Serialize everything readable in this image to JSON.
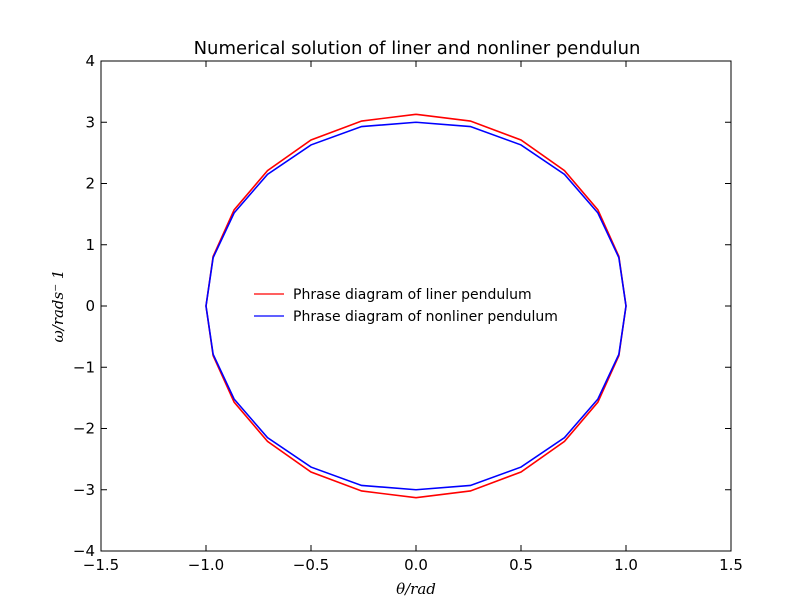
{
  "chart_data": {
    "type": "line",
    "title": "Numerical solution of liner and nonliner pendulun",
    "xlabel": "θ/rad",
    "ylabel": "ω/rads⁻ 1",
    "xlim": [
      -1.5,
      1.5
    ],
    "ylim": [
      -4,
      4
    ],
    "xticks": [
      -1.5,
      -1.0,
      -0.5,
      0.0,
      0.5,
      1.0,
      1.5
    ],
    "xtick_labels": [
      "−1.5",
      "−1.0",
      "−0.5",
      "0.0",
      "0.5",
      "1.0",
      "1.5"
    ],
    "yticks": [
      -4,
      -3,
      -2,
      -1,
      0,
      1,
      2,
      3,
      4
    ],
    "ytick_labels": [
      "−4",
      "−3",
      "−2",
      "−1",
      "0",
      "1",
      "2",
      "3",
      "4"
    ],
    "grid": false,
    "legend_position": "center",
    "series": [
      {
        "name": "Phrase diagram of liner pendulum",
        "color": "#ff0000",
        "x": [
          0.0,
          0.259,
          0.5,
          0.707,
          0.866,
          0.966,
          1.0,
          0.966,
          0.866,
          0.707,
          0.5,
          0.259,
          0.0,
          -0.259,
          -0.5,
          -0.707,
          -0.866,
          -0.966,
          -1.0,
          -0.966,
          -0.866,
          -0.707,
          -0.5,
          -0.259,
          0.0
        ],
        "y": [
          3.13,
          3.02,
          2.71,
          2.21,
          1.57,
          0.81,
          0.0,
          -0.81,
          -1.57,
          -2.21,
          -2.71,
          -3.02,
          -3.13,
          -3.02,
          -2.71,
          -2.21,
          -1.57,
          -0.81,
          0.0,
          0.81,
          1.57,
          2.21,
          2.71,
          3.02,
          3.13
        ]
      },
      {
        "name": "Phrase diagram of nonliner pendulum",
        "color": "#0000ff",
        "x": [
          0.0,
          0.259,
          0.5,
          0.707,
          0.866,
          0.966,
          1.0,
          0.966,
          0.866,
          0.707,
          0.5,
          0.259,
          0.0,
          -0.259,
          -0.5,
          -0.707,
          -0.866,
          -0.966,
          -1.0,
          -0.966,
          -0.866,
          -0.707,
          -0.5,
          -0.259,
          0.0
        ],
        "y": [
          3.0,
          2.93,
          2.63,
          2.15,
          1.52,
          0.79,
          0.0,
          -0.79,
          -1.52,
          -2.15,
          -2.63,
          -2.93,
          -3.0,
          -2.93,
          -2.63,
          -2.15,
          -1.52,
          -0.79,
          0.0,
          0.79,
          1.52,
          2.15,
          2.63,
          2.93,
          3.0
        ]
      }
    ]
  }
}
